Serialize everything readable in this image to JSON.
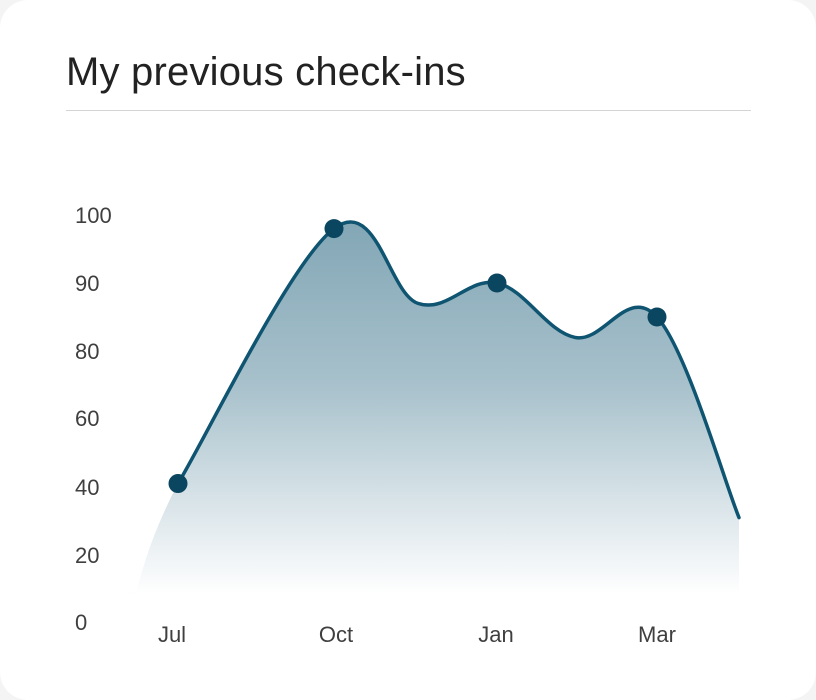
{
  "card": {
    "title": "My previous check-ins"
  },
  "colors": {
    "line": "#0f5470",
    "point": "#0b4660",
    "fill_top": "#1a5c78"
  },
  "chart_data": {
    "type": "area",
    "title": "My previous check-ins",
    "xlabel": "",
    "ylabel": "",
    "y_ticks": [
      0,
      20,
      40,
      60,
      80,
      90,
      100
    ],
    "x_tick_labels": [
      "Jul",
      "Oct",
      "Jan",
      "Mar"
    ],
    "marked_points": [
      {
        "x": "Jul",
        "y": 41
      },
      {
        "x": "Oct",
        "y": 98
      },
      {
        "x": "Jan",
        "y": 90
      },
      {
        "x": "Mar",
        "y": 85
      }
    ],
    "curve": [
      {
        "x": "Jun",
        "y": 0
      },
      {
        "x": "Jul",
        "y": 41
      },
      {
        "x": "Oct",
        "y": 98
      },
      {
        "x": "Nov",
        "y": 87
      },
      {
        "x": "Jan",
        "y": 90
      },
      {
        "x": "Feb",
        "y": 82
      },
      {
        "x": "Mar",
        "y": 85
      },
      {
        "x": "Apr",
        "y": 31
      }
    ],
    "grid": false,
    "legend": "none"
  }
}
